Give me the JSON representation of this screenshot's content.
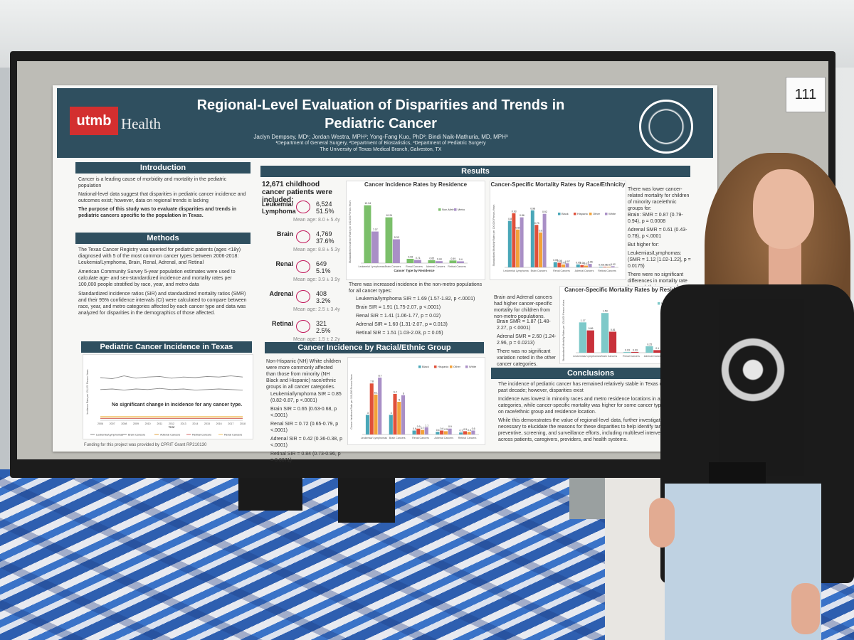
{
  "booth_number": "111",
  "poster": {
    "logo": {
      "brand": "utmb",
      "brand_suffix": "Health"
    },
    "title_line1": "Regional-Level Evaluation of Disparities and Trends in",
    "title_line2": "Pediatric Cancer",
    "authors": "Jaclyn Dempsey, MD¹; Jordan Westra, MPH²; Yong-Fang Kuo, PhD²; Bindi Naik-Mathuria, MD, MPH³",
    "departments": "¹Department of General Surgery, ²Department of Biostatistics, ³Department of Pediatric Surgery",
    "university": "The University of Texas Medical Branch, Galveston, TX",
    "introduction": {
      "heading": "Introduction",
      "bullets": [
        "Cancer is a leading cause of morbidity and mortality in the pediatric population",
        "National-level data suggest that disparities in pediatric cancer incidence and outcomes exist; however, data on regional trends is lacking",
        "The purpose of this study was to evaluate disparities and trends in pediatric cancers specific to the population in Texas."
      ]
    },
    "methods": {
      "heading": "Methods",
      "bullets": [
        "The Texas Cancer Registry was queried for pediatric patients (ages <18y) diagnosed with 5 of the most common cancer types between 2006-2018: Leukemia/Lymphoma, Brain, Renal, Adrenal, and Retinal",
        "American Community Survey 5-year population estimates were used to calculate age- and sex-standardized incidence and mortality rates per 100,000 people stratified by race, year, and metro data",
        "Standardized incidence ratios (SIR) and standardized mortality ratios (SMR) and their 95% confidence intervals (CI) were calculated to compare between race, year, and metro categories affected by each cancer type and data was analyzed for disparities in the demographics of those affected."
      ]
    },
    "trend": {
      "heading": "Pediatric Cancer Incidence in Texas",
      "note": "No significant change in incidence for any cancer type.",
      "years": [
        "2006",
        "2007",
        "2008",
        "2009",
        "2010",
        "2011",
        "2012",
        "2013",
        "2014",
        "2015",
        "2016",
        "2017",
        "2018"
      ],
      "xlabel": "Year",
      "ylabel": "Incidence Rate per 100,000 Person-Years",
      "legend": [
        "Leukemia/Lymphoma",
        "Brain Cancers",
        "Adrenal Cancers",
        "Retinal Cancers",
        "Renal Cancers"
      ]
    },
    "footer": "Funding for this project was provided by CPRIT Grant RP210130",
    "results": {
      "heading": "Results",
      "total": "12,671 childhood cancer patients were included:",
      "cancers": [
        {
          "name": "Leukemia/ Lymphoma",
          "count": "6,524",
          "pct": "51.5%",
          "age": "Mean age: 8.0 ± 5.4y",
          "icon": "leukemia-icon"
        },
        {
          "name": "Brain",
          "count": "4,769",
          "pct": "37.6%",
          "age": "Mean age: 8.8 ± 5.3y",
          "icon": "brain-icon"
        },
        {
          "name": "Renal",
          "count": "649",
          "pct": "5.1%",
          "age": "Mean age: 3.9 ± 3.9y",
          "icon": "kidney-icon"
        },
        {
          "name": "Adrenal",
          "count": "408",
          "pct": "3.2%",
          "age": "Mean age: 2.5 ± 3.4y",
          "icon": "adrenal-icon"
        },
        {
          "name": "Retinal",
          "count": "321",
          "pct": "2.5%",
          "age": "Mean age: 1.5 ± 2.2y",
          "icon": "eye-icon"
        }
      ],
      "residence_text": "There was increased incidence in the non-metro populations for all cancer types:",
      "residence_sir": [
        "Leukemia/lymphoma SIR = 1.69 (1.57-1.82, p <.0001)",
        "Brain SIR = 1.91 (1.75-2.07, p <.0001)",
        "Renal SIR = 1.41 (1.06-1.77, p = 0.02)",
        "Adrenal SIR = 1.60 (1.31-2.07, p = 0.013)",
        "Retinal SIR = 1.51 (1.03-2.03, p = 0.05)"
      ],
      "race_heading": "Cancer Incidence by Racial/Ethnic Group",
      "race_text": "Non-Hispanic (NH) White children were more commonly affected than those from minority (NH Black and Hispanic) race/ethnic groups in all cancer categories.",
      "race_sir": [
        "Leukemia/lymphoma SIR = 0.85 (0.82-0.87, p <.0001)",
        "Brain SIR = 0.65 (0.63-0.68, p <.0001)",
        "Renal SIR = 0.72 (0.65-0.79, p <.0001)",
        "Adrenal SIR = 0.42 (0.36-0.38, p <.0001)",
        "Retinal SIR = 0.84 (0.73-0.96, p = 0.0071)"
      ],
      "mortality_race_text": "There was lower cancer-related mortality for children of minority race/ethnic groups for:",
      "mortality_race_items": [
        "Brain: SMR = 0.87 (0.79-0.94), p = 0.0008",
        "Adrenal SMR = 0.61 (0.43-0.78), p <.0001",
        "But higher for:",
        "Leukemias/Lymphomas: (SMR = 1.12 [1.02-1.22], p = 0.0175)",
        "There were no significant differences in mortality rate by race/ethnic groups for renal or retinal cancers."
      ],
      "mortality_res_text": "Brain and Adrenal cancers had higher cancer-specific mortality for children from non-metro populations.",
      "mortality_res_items": [
        "Brain SMR = 1.87 (1.48-2.27, p <.0001)",
        "Adrenal SMR = 2.60 (1.24-2.96, p = 0.0213)",
        "There was no significant variation noted in the other cancer categories."
      ]
    },
    "conclusions": {
      "heading": "Conclusions",
      "bullets": [
        "The incidence of pediatric cancer has remained relatively stable in Texas during the past decade; however, disparities exist",
        "Incidence was lowest in minority races and metro residence locations in all categories, while cancer-specific mortality was higher for some cancer types based on race/ethnic group and residence location.",
        "While this demonstrates the value of regional-level data, further investigation is necessary to elucidate the reasons for these disparities to help identify targets for preventive, screening, and surveillance efforts, including multilevel interventions across patients, caregivers, providers, and health systems."
      ]
    }
  },
  "chart_data": [
    {
      "type": "bar",
      "title": "Cancer Incidence Rates by Residence",
      "xlabel": "Cancer Type by Residence",
      "ylabel": "Standardized Incidence Rates per 100,000 Person-Years",
      "categories": [
        "Leukemia/ Lymphomas",
        "Brain Cancers",
        "Renal Cancers",
        "Adrenal Cancers",
        "Retinal Cancers"
      ],
      "series": [
        {
          "name": "Non-Metro",
          "values": [
            12.94,
            10.24,
            0.96,
            0.65,
            0.59
          ]
        },
        {
          "name": "Metro",
          "values": [
            7.07,
            5.33,
            0.71,
            0.44,
            0.4
          ]
        }
      ],
      "ylim": [
        0,
        14
      ],
      "colors": [
        "#7bbf6a",
        "#a98fc6"
      ]
    },
    {
      "type": "bar",
      "title": "Cancer-Specific Mortality Rates by Race/Ethnicity",
      "ylabel": "Standardized Mortality Rates per 100,000 Person-Years",
      "categories": [
        "Leukemia/ Lymphoma",
        "Brain Cancers",
        "Renal Cancers",
        "Adrenal Cancers",
        "Retinal Cancers"
      ],
      "series": [
        {
          "name": "Black",
          "values": [
            0.8,
            0.98,
            0.09,
            0.05,
            0.01
          ]
        },
        {
          "name": "Hispanic",
          "values": [
            0.93,
            0.73,
            0.08,
            0.04,
            0.01
          ]
        },
        {
          "name": "Other",
          "values": [
            0.65,
            0.6,
            0.05,
            0.03,
            0.01
          ]
        },
        {
          "name": "White",
          "values": [
            0.86,
            0.92,
            0.07,
            0.06,
            0.02
          ]
        }
      ],
      "ylim": [
        0,
        1.1
      ],
      "colors": [
        "#4aa7b8",
        "#e0503a",
        "#f2a23a",
        "#a98fc6"
      ]
    },
    {
      "type": "bar",
      "title": "Cancer-Specific Mortality Rates by Residence",
      "ylabel": "Standardized Mortality Rates per 100,000 Person-Years",
      "categories": [
        "Leukemias/ Lymphomas",
        "Brain Cancers",
        "Renal Cancers",
        "Adrenal Cancers",
        "Retinal Cancers"
      ],
      "series": [
        {
          "name": "Non-Metro",
          "values": [
            1.17,
            1.53,
            0.03,
            0.25,
            0.02
          ]
        },
        {
          "name": "Metro",
          "values": [
            0.86,
            0.81,
            0.03,
            0.1,
            0.01
          ]
        }
      ],
      "ylim": [
        0,
        1.7
      ],
      "colors": [
        "#7ec9c9",
        "#c8313a"
      ]
    },
    {
      "type": "bar",
      "title": "Cancer Incidence by Racial/Ethnic Group",
      "ylabel": "Cancer Incidence Rate per 100,000 Person-Years",
      "categories": [
        "Leukemia/ Lymphomas",
        "Brain Cancers",
        "Renal Cancers",
        "Adrenal Cancers",
        "Retinal Cancers"
      ],
      "series": [
        {
          "name": "Black",
          "values": [
            3.0,
            3.0,
            0.6,
            0.4,
            0.3
          ]
        },
        {
          "name": "Hispanic",
          "values": [
            7.8,
            6.2,
            0.9,
            0.6,
            0.5
          ]
        },
        {
          "name": "Other",
          "values": [
            6.1,
            5.0,
            0.7,
            0.5,
            0.4
          ]
        },
        {
          "name": "White",
          "values": [
            8.7,
            6.0,
            1.1,
            0.9,
            0.6
          ]
        }
      ],
      "ylim": [
        0,
        10
      ],
      "colors": [
        "#4aa7b8",
        "#e0503a",
        "#f2a23a",
        "#a98fc6"
      ]
    },
    {
      "type": "line",
      "title": "Pediatric Cancer Incidence in Texas",
      "xlabel": "Year",
      "ylabel": "Incidence Rate per 100,000 Person-Years",
      "x": [
        "2006",
        "2007",
        "2008",
        "2009",
        "2010",
        "2011",
        "2012",
        "2013",
        "2014",
        "2015",
        "2016",
        "2017",
        "2018"
      ],
      "series": [
        {
          "name": "Leukemia/Lymphomas",
          "values": [
            7.5,
            7.3,
            7.8,
            7.4,
            7.6,
            7.7,
            7.4,
            7.6,
            7.5,
            7.7,
            7.6,
            7.8,
            7.6
          ]
        },
        {
          "name": "Brain Cancers",
          "values": [
            5.4,
            5.5,
            5.3,
            5.5,
            5.4,
            5.6,
            5.4,
            5.5,
            5.3,
            5.4,
            5.5,
            5.4,
            5.3
          ]
        },
        {
          "name": "Adrenal Cancers",
          "values": [
            0.4,
            0.4,
            0.4,
            0.4,
            0.4,
            0.4,
            0.4,
            0.4,
            0.4,
            0.4,
            0.4,
            0.4,
            0.4
          ]
        },
        {
          "name": "Retinal Cancers",
          "values": [
            0.3,
            0.3,
            0.3,
            0.3,
            0.3,
            0.3,
            0.3,
            0.3,
            0.3,
            0.3,
            0.3,
            0.3,
            0.3
          ]
        },
        {
          "name": "Renal Cancers",
          "values": [
            0.7,
            0.7,
            0.7,
            0.7,
            0.7,
            0.7,
            0.7,
            0.7,
            0.7,
            0.7,
            0.7,
            0.7,
            0.7
          ]
        }
      ],
      "ylim": [
        0,
        10
      ],
      "colors": [
        "#888888",
        "#888888",
        "#e0a040",
        "#d46a6a",
        "#f2c060"
      ]
    }
  ]
}
